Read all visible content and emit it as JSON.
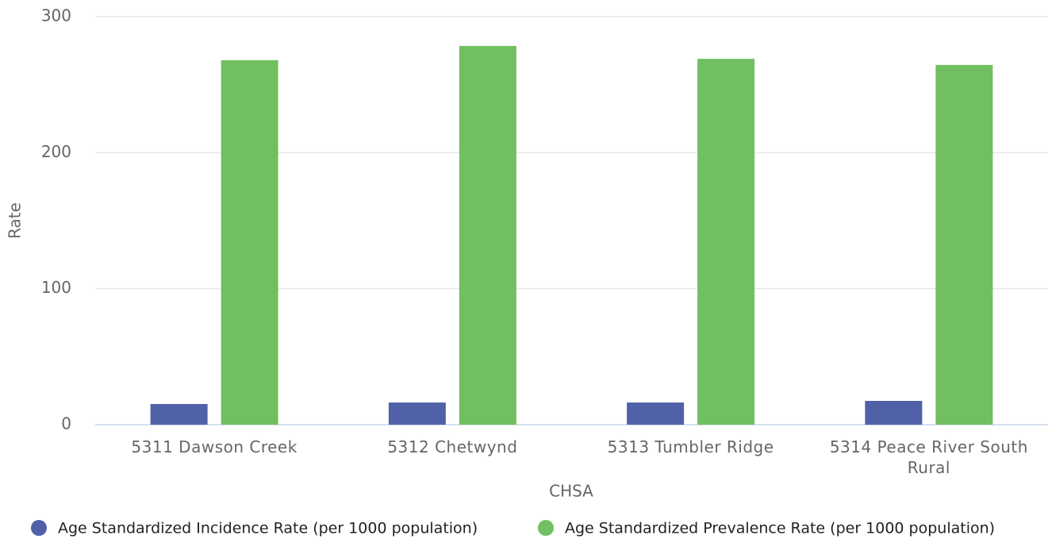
{
  "chart_data": {
    "type": "bar",
    "x_label": "CHSA",
    "y_label": "Rate",
    "categories": [
      "5311 Dawson Creek",
      "5312 Chetwynd",
      "5313 Tumbler Ridge",
      "5314 Peace River South Rural"
    ],
    "series": [
      {
        "name": "Age Standardized Incidence Rate (per 1000 population)",
        "color": "#5161a8",
        "values": [
          15.2,
          16.3,
          16.3,
          17.5
        ]
      },
      {
        "name": "Age Standardized Prevalence Rate (per 1000 population)",
        "color": "#71bf60",
        "values": [
          268,
          278.5,
          269,
          264.5
        ]
      }
    ],
    "ylim": [
      0,
      300
    ],
    "yticks": [
      0,
      100,
      200,
      300
    ],
    "grid": true,
    "legend": "bottom"
  }
}
